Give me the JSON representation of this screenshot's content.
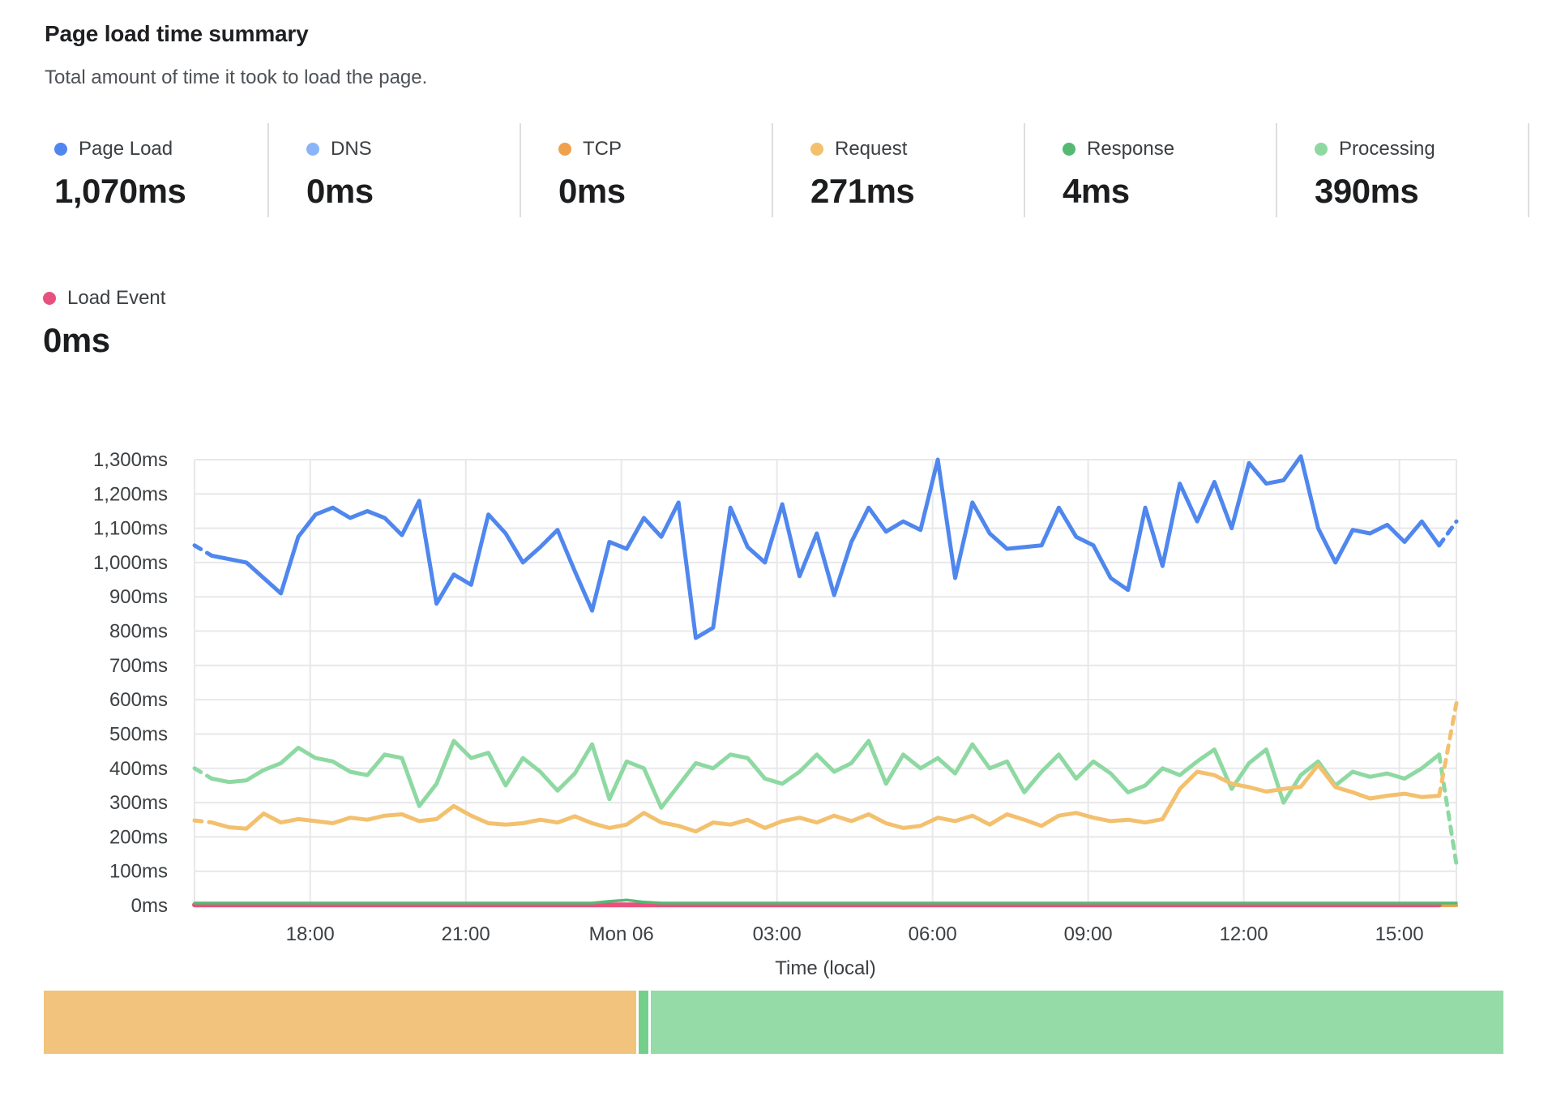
{
  "header": {
    "title": "Page load time summary",
    "subtitle": "Total amount of time it took to load the page."
  },
  "metrics": [
    {
      "id": "page-load",
      "label": "Page Load",
      "value": "1,070ms",
      "color": "#4f87ee"
    },
    {
      "id": "dns",
      "label": "DNS",
      "value": "0ms",
      "color": "#8ab4f8"
    },
    {
      "id": "tcp",
      "label": "TCP",
      "value": "0ms",
      "color": "#f0a14c"
    },
    {
      "id": "request",
      "label": "Request",
      "value": "271ms",
      "color": "#f3c06e"
    },
    {
      "id": "response",
      "label": "Response",
      "value": "4ms",
      "color": "#55b973"
    },
    {
      "id": "processing",
      "label": "Processing",
      "value": "390ms",
      "color": "#8ed9a2"
    }
  ],
  "metrics_row2": [
    {
      "id": "load-event",
      "label": "Load Event",
      "value": "0ms",
      "color": "#e8517e"
    }
  ],
  "chart_data": {
    "type": "line",
    "title": "Page load time summary",
    "xlabel": "Time (local)",
    "ylabel": "",
    "grid": true,
    "legend_position": "top-cards",
    "ylim": [
      0,
      1300
    ],
    "y_ticks": [
      {
        "value": 0,
        "label": "0ms"
      },
      {
        "value": 100,
        "label": "100ms"
      },
      {
        "value": 200,
        "label": "200ms"
      },
      {
        "value": 300,
        "label": "300ms"
      },
      {
        "value": 400,
        "label": "400ms"
      },
      {
        "value": 500,
        "label": "500ms"
      },
      {
        "value": 600,
        "label": "600ms"
      },
      {
        "value": 700,
        "label": "700ms"
      },
      {
        "value": 800,
        "label": "800ms"
      },
      {
        "value": 900,
        "label": "900ms"
      },
      {
        "value": 1000,
        "label": "1,000ms"
      },
      {
        "value": 1100,
        "label": "1,100ms"
      },
      {
        "value": 1200,
        "label": "1,200ms"
      },
      {
        "value": 1300,
        "label": "1,300ms"
      }
    ],
    "x_hours_span": 24.33,
    "x_ticks": [
      {
        "hour": 2.23,
        "label": "18:00"
      },
      {
        "hour": 5.23,
        "label": "21:00"
      },
      {
        "hour": 8.23,
        "label": "Mon 06"
      },
      {
        "hour": 11.23,
        "label": "03:00"
      },
      {
        "hour": 14.23,
        "label": "06:00"
      },
      {
        "hour": 17.23,
        "label": "09:00"
      },
      {
        "hour": 20.23,
        "label": "12:00"
      },
      {
        "hour": 23.23,
        "label": "15:00"
      }
    ],
    "points": 74,
    "sample_interval_hours": 0.333,
    "series": [
      {
        "name": "DNS",
        "color": "#8ab4f8",
        "width": 4,
        "values_constant": 0
      },
      {
        "name": "TCP",
        "color": "#f0a14c",
        "width": 4,
        "values_constant": 0
      },
      {
        "name": "Processing",
        "color": "#8ed9a2",
        "width": 5,
        "dash_start": true,
        "dash_end": true,
        "values": [
          400,
          370,
          360,
          365,
          395,
          415,
          460,
          430,
          420,
          390,
          380,
          440,
          430,
          290,
          355,
          480,
          430,
          445,
          350,
          430,
          390,
          335,
          385,
          470,
          310,
          420,
          400,
          285,
          350,
          415,
          400,
          440,
          430,
          370,
          355,
          390,
          440,
          390,
          415,
          480,
          355,
          440,
          400,
          430,
          385,
          470,
          400,
          420,
          330,
          390,
          440,
          370,
          420,
          385,
          330,
          350,
          400,
          380,
          420,
          455,
          340,
          415,
          455,
          300,
          380,
          420,
          350,
          390,
          375,
          385,
          370,
          400,
          440,
          120
        ]
      },
      {
        "name": "Request",
        "color": "#f3c06e",
        "width": 5,
        "dash_start": true,
        "dash_end": true,
        "values": [
          248,
          242,
          228,
          224,
          268,
          242,
          252,
          246,
          240,
          256,
          250,
          262,
          266,
          246,
          252,
          290,
          262,
          240,
          236,
          240,
          250,
          242,
          260,
          240,
          226,
          236,
          270,
          242,
          232,
          216,
          242,
          236,
          250,
          226,
          246,
          256,
          242,
          262,
          246,
          266,
          240,
          226,
          232,
          256,
          246,
          262,
          236,
          266,
          250,
          232,
          262,
          270,
          256,
          246,
          250,
          242,
          252,
          340,
          390,
          380,
          355,
          345,
          332,
          340,
          346,
          410,
          345,
          330,
          312,
          320,
          326,
          316,
          320,
          590
        ]
      },
      {
        "name": "Load Event",
        "color": "#e8517e",
        "width": 6,
        "trim_end": 1,
        "values_constant": 2
      },
      {
        "name": "Response",
        "color": "#55b973",
        "width": 3.5,
        "values": [
          7,
          7,
          7,
          7,
          7,
          7,
          7,
          7,
          7,
          7,
          7,
          7,
          7,
          7,
          7,
          7,
          7,
          7,
          7,
          7,
          7,
          7,
          7,
          7,
          12,
          16,
          10,
          7,
          7,
          7,
          7,
          7,
          7,
          7,
          7,
          7,
          7,
          7,
          7,
          7,
          7,
          7,
          7,
          7,
          7,
          7,
          7,
          7,
          7,
          7,
          7,
          7,
          7,
          7,
          7,
          7,
          7,
          7,
          7,
          7,
          7,
          7,
          7,
          7,
          7,
          7,
          7,
          7,
          7,
          7,
          7,
          7,
          7,
          7
        ]
      },
      {
        "name": "Page Load",
        "color": "#4f87ee",
        "width": 5,
        "dash_start": true,
        "dash_end": true,
        "values": [
          1050,
          1020,
          1010,
          1000,
          955,
          910,
          1075,
          1140,
          1160,
          1130,
          1150,
          1130,
          1080,
          1180,
          880,
          965,
          935,
          1140,
          1085,
          1000,
          1045,
          1095,
          975,
          860,
          1060,
          1040,
          1130,
          1075,
          1175,
          780,
          810,
          1160,
          1045,
          1000,
          1170,
          960,
          1085,
          905,
          1060,
          1160,
          1090,
          1120,
          1095,
          1300,
          955,
          1175,
          1085,
          1040,
          1045,
          1050,
          1160,
          1075,
          1050,
          955,
          920,
          1160,
          990,
          1230,
          1120,
          1235,
          1100,
          1290,
          1230,
          1240,
          1310,
          1100,
          1000,
          1095,
          1085,
          1110,
          1060,
          1120,
          1050,
          1120
        ]
      }
    ]
  },
  "status_bar": {
    "segments": [
      {
        "id": "degraded",
        "color": "#f2c37c",
        "width_pct": 40.75
      },
      {
        "id": "passing-strip",
        "color": "#74ce8c",
        "width_pct": 0.62
      },
      {
        "id": "passing",
        "color": "#95dba7",
        "width_pct": 58.63
      }
    ]
  },
  "chart_colors": {
    "grid": "#e8e8ea",
    "tick_text": "#3c4043"
  }
}
